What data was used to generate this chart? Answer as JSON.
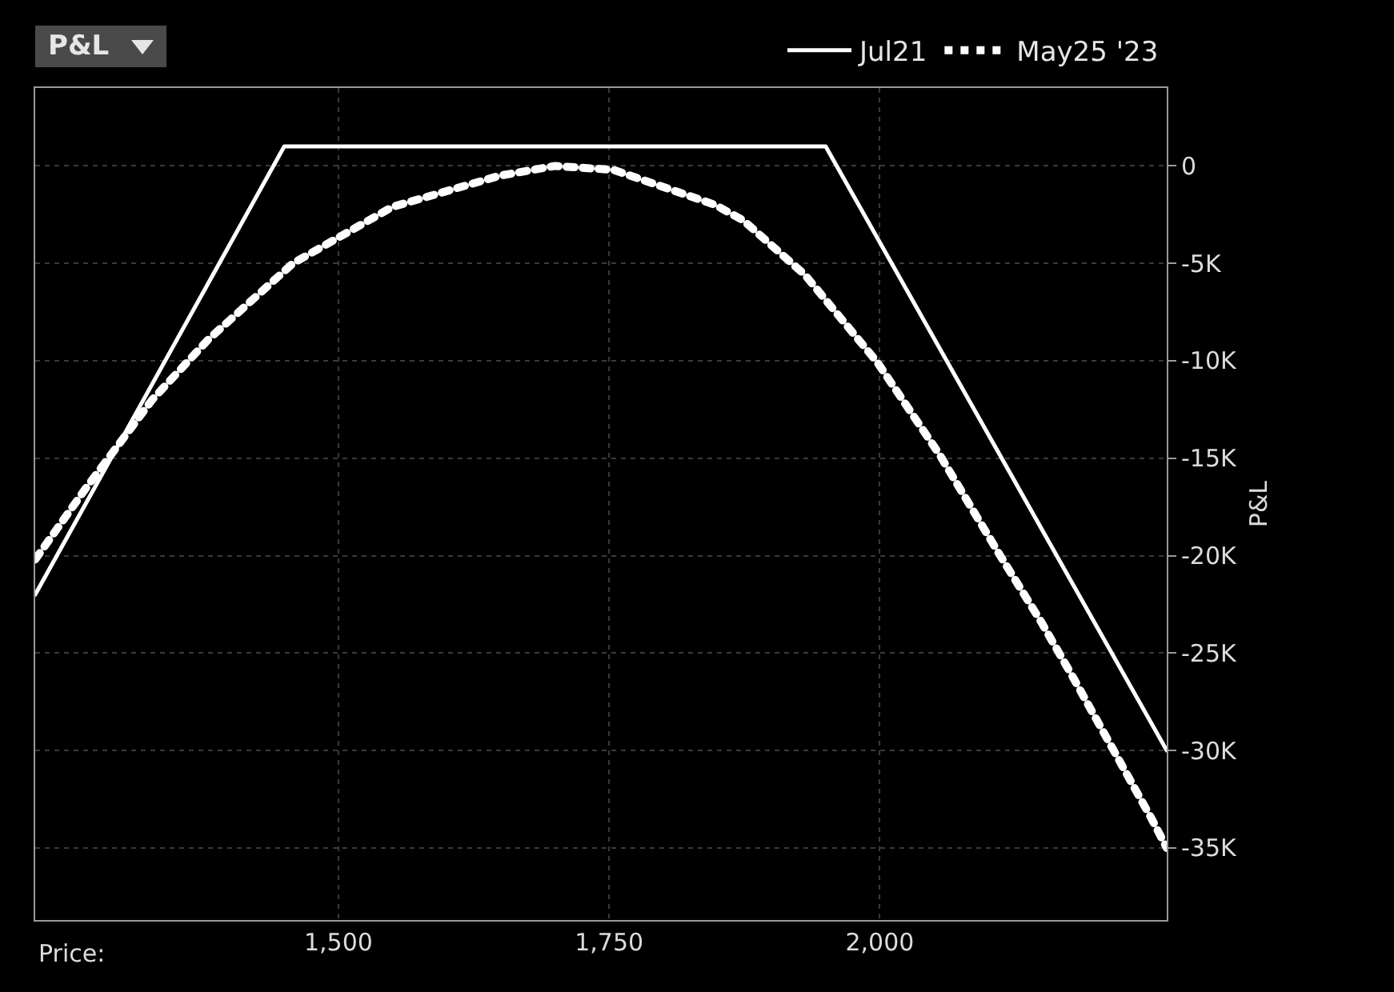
{
  "chart_data": {
    "type": "line",
    "title": "P&L",
    "xlabel": "Price:",
    "ylabel": "P&L",
    "series": [
      {
        "name": "Jul21",
        "color": "#ffffff",
        "line_style": "solid",
        "x": [
          1220,
          1450,
          1950,
          2265
        ],
        "values": [
          -22000,
          1000,
          1000,
          -30000
        ]
      },
      {
        "name": "May25 '23",
        "color": "#ffffff",
        "line_style": "dotted",
        "x": [
          1220,
          1266,
          1328,
          1380,
          1458,
          1550,
          1649,
          1700,
          1754,
          1848,
          1874,
          1931,
          1998,
          2055,
          2109,
          2149,
          2177,
          2214,
          2251,
          2265
        ],
        "values": [
          -20200,
          -16600,
          -12000,
          -8900,
          -5000,
          -2100,
          -500,
          0,
          -200,
          -2000,
          -2800,
          -5600,
          -10100,
          -14800,
          -19800,
          -23400,
          -26100,
          -29800,
          -33500,
          -35000
        ]
      }
    ],
    "xlim": [
      1220,
      2265
    ],
    "xticks": [
      {
        "value": 1500,
        "label": "1,500"
      },
      {
        "value": 1750,
        "label": "1,750"
      },
      {
        "value": 2000,
        "label": "2,000"
      }
    ],
    "ylim": [
      -38700,
      4000
    ],
    "yticks": [
      {
        "value": 0,
        "label": "0"
      },
      {
        "value": -5000,
        "label": "-5K"
      },
      {
        "value": -10000,
        "label": "-10K"
      },
      {
        "value": -15000,
        "label": "-15K"
      },
      {
        "value": -20000,
        "label": "-20K"
      },
      {
        "value": -25000,
        "label": "-25K"
      },
      {
        "value": -30000,
        "label": "-30K"
      },
      {
        "value": -35000,
        "label": "-35K"
      }
    ],
    "grid": true,
    "legend": "top right"
  }
}
